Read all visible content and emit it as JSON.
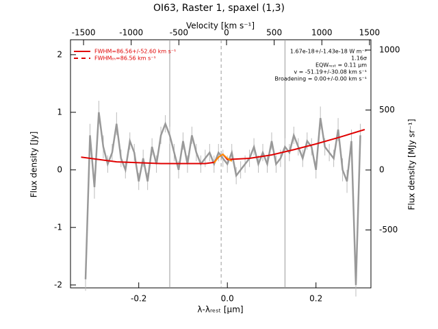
{
  "chart_data": {
    "type": "line",
    "title": "OI63, Raster 1, spaxel (1,3)",
    "xlabel": "λ-λᵣₑₛₜ [μm]",
    "ylabel": "Flux density [Jy]",
    "y2label": "Flux density [MJy sr⁻¹]",
    "x2label": "Velocity [km s⁻¹]",
    "xlim": [
      -0.354,
      0.324
    ],
    "xticks": [
      -0.2,
      {
        "value": 0,
        "label": "0.0"
      },
      0.2
    ],
    "x2lim": [
      -1637,
      1515
    ],
    "x2ticks": [
      -1500,
      -1000,
      -500,
      0,
      500,
      1000,
      1500
    ],
    "ylim": [
      -2.05,
      2.26
    ],
    "yticks": [
      -2,
      -1,
      0,
      1,
      2
    ],
    "y2lim": [
      -983,
      1086
    ],
    "y2ticks": [
      -500,
      0,
      500,
      1000
    ],
    "series": [
      {
        "color": "#999999",
        "x": [
          -0.32,
          -0.31,
          -0.3,
          -0.29,
          -0.28,
          -0.27,
          -0.26,
          -0.25,
          -0.24,
          -0.23,
          -0.22,
          -0.21,
          -0.2,
          -0.19,
          -0.18,
          -0.17,
          -0.16,
          -0.15,
          -0.14,
          -0.13,
          -0.12,
          -0.11,
          -0.1,
          -0.09,
          -0.08,
          -0.07,
          -0.06,
          -0.05,
          -0.04,
          -0.03,
          -0.02,
          -0.01,
          0.0,
          0.01,
          0.02,
          0.03,
          0.04,
          0.05,
          0.06,
          0.07,
          0.08,
          0.09,
          0.1,
          0.11,
          0.12,
          0.13,
          0.14,
          0.15,
          0.16,
          0.17,
          0.18,
          0.19,
          0.2,
          0.21,
          0.22,
          0.23,
          0.24,
          0.25,
          0.26,
          0.27,
          0.28,
          0.29,
          0.3
        ],
        "values": [
          -1.9,
          0.6,
          -0.3,
          1.0,
          0.4,
          0.1,
          0.3,
          0.8,
          0.2,
          0.0,
          0.5,
          0.3,
          -0.2,
          0.2,
          -0.2,
          0.4,
          0.1,
          0.6,
          0.8,
          0.6,
          0.3,
          0.0,
          0.5,
          0.1,
          0.6,
          0.3,
          0.1,
          0.2,
          0.3,
          0.1,
          0.3,
          0.2,
          0.1,
          0.3,
          -0.1,
          0.0,
          0.1,
          0.2,
          0.4,
          0.1,
          0.3,
          0.1,
          0.5,
          0.1,
          0.2,
          0.4,
          0.3,
          0.6,
          0.4,
          0.2,
          0.5,
          0.4,
          0.0,
          0.9,
          0.4,
          0.3,
          0.2,
          0.7,
          0.0,
          -0.2,
          0.5,
          -2.0,
          0.6
        ],
        "errors": [
          0.2,
          0.2,
          0.2,
          0.2,
          0.2,
          0.15,
          0.15,
          0.2,
          0.15,
          0.15,
          0.15,
          0.15,
          0.15,
          0.15,
          0.15,
          0.15,
          0.15,
          0.15,
          0.15,
          0.15,
          0.15,
          0.15,
          0.15,
          0.15,
          0.15,
          0.15,
          0.15,
          0.15,
          0.15,
          0.15,
          0.15,
          0.15,
          0.15,
          0.15,
          0.15,
          0.15,
          0.15,
          0.15,
          0.15,
          0.15,
          0.15,
          0.15,
          0.15,
          0.15,
          0.15,
          0.15,
          0.15,
          0.15,
          0.15,
          0.15,
          0.15,
          0.15,
          0.15,
          0.2,
          0.15,
          0.15,
          0.15,
          0.2,
          0.2,
          0.2,
          0.2,
          0.2,
          0.2
        ]
      },
      {
        "color": "#e00000",
        "x": [
          -0.33,
          -0.25,
          -0.15,
          -0.05,
          -0.03,
          -0.02,
          -0.01,
          0.0,
          0.05,
          0.1,
          0.15,
          0.2,
          0.25,
          0.31
        ],
        "values": [
          0.22,
          0.14,
          0.11,
          0.11,
          0.13,
          0.22,
          0.27,
          0.18,
          0.2,
          0.26,
          0.35,
          0.45,
          0.56,
          0.7
        ]
      },
      {
        "color": "#ff8c00",
        "x": [
          -0.03,
          -0.02,
          -0.01,
          0.0,
          0.01
        ],
        "values": [
          0.12,
          0.22,
          0.27,
          0.2,
          0.15
        ]
      }
    ],
    "vlines": [
      {
        "x": -0.13,
        "color": "#999999",
        "dash": false
      },
      {
        "x": 0.13,
        "color": "#999999",
        "dash": false
      },
      {
        "x": -0.014,
        "color": "#999999",
        "dash": true
      }
    ],
    "legend": [
      {
        "label": "FWHM=86.56+/-52.60 km s⁻¹",
        "color": "#e00000",
        "dash": false
      },
      {
        "label": "FWHMₜₕ=86.56 km s⁻¹",
        "color": "#e00000",
        "dash": true
      }
    ],
    "annotations": [
      "1.67e-18+/-1.43e-18 W m⁻²",
      "1.16σ",
      "EQWᵣₑₛₜ = 0.11 μm",
      "v = -51.19+/-30.08 km s⁻¹",
      "Broadening = 0.00+/-0.00 km s⁻¹"
    ]
  }
}
